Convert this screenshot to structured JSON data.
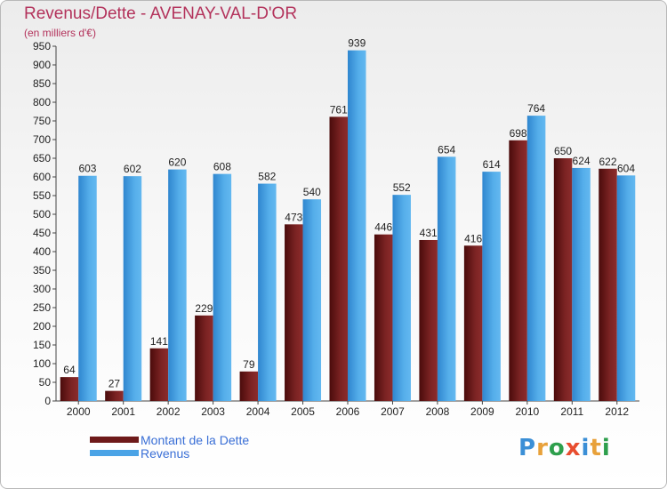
{
  "title": "Revenus/Dette - AVENAY-VAL-D'OR",
  "subtitle": "(en milliers d'€)",
  "logo": {
    "text": "Proxiti",
    "colors": [
      "#3b8fd6",
      "#e8a13a",
      "#2e9f4c",
      "#e84d2f",
      "#3b8fd6",
      "#e8a13a",
      "#2e9f4c"
    ]
  },
  "colors": {
    "dette": "#6e1a1a",
    "revenus": "#4aa3e6",
    "title": "#b3325b",
    "legend_text": "#3a6fd6"
  },
  "chart_data": {
    "type": "bar",
    "title": "Revenus/Dette - AVENAY-VAL-D'OR",
    "ylabel": "(en milliers d'€)",
    "categories": [
      "2000",
      "2001",
      "2002",
      "2003",
      "2004",
      "2005",
      "2006",
      "2007",
      "2008",
      "2009",
      "2010",
      "2011",
      "2012"
    ],
    "series": [
      {
        "name": "Montant de la Dette",
        "values": [
          64,
          27,
          141,
          229,
          79,
          473,
          761,
          446,
          431,
          416,
          698,
          650,
          622
        ]
      },
      {
        "name": "Revenus",
        "values": [
          603,
          602,
          620,
          608,
          582,
          540,
          939,
          552,
          654,
          614,
          764,
          624,
          604
        ]
      }
    ],
    "ylim": [
      0,
      950
    ],
    "yticks": [
      0,
      50,
      100,
      150,
      200,
      250,
      300,
      350,
      400,
      450,
      500,
      550,
      600,
      650,
      700,
      750,
      800,
      850,
      900,
      950
    ],
    "grid": false,
    "legend": "bottom-left"
  }
}
